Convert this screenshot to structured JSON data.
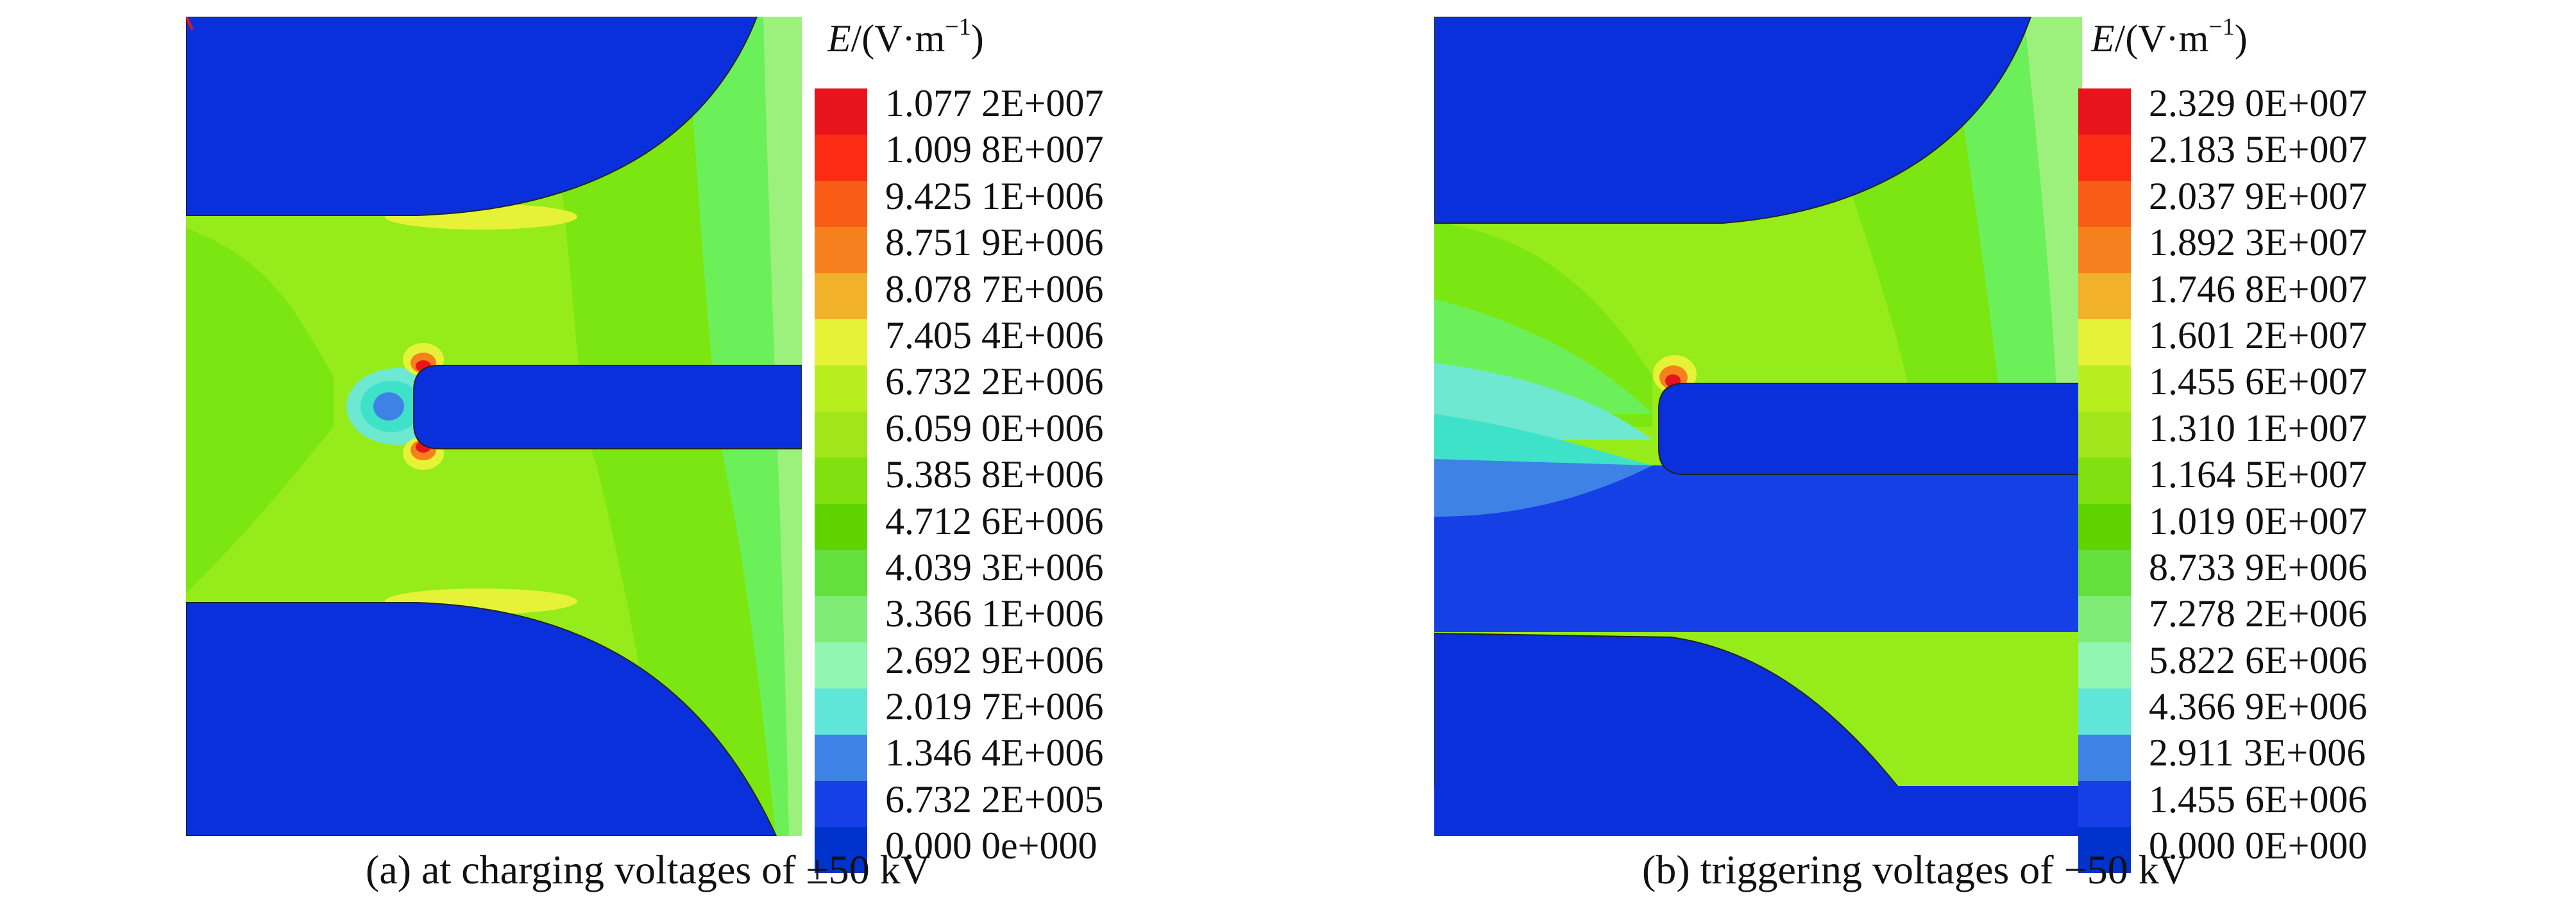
{
  "figures": [
    {
      "legend_title": "E",
      "legend_unit_prefix": "/(V·m",
      "legend_unit_exp": "−1",
      "legend_unit_suffix": ")",
      "levels": [
        "1.077 2E+007",
        "1.009 8E+007",
        "9.425 1E+006",
        "8.751 9E+006",
        "8.078 7E+006",
        "7.405 4E+006",
        "6.732 2E+006",
        "6.059 0E+006",
        "5.385 8E+006",
        "4.712 6E+006",
        "4.039 3E+006",
        "3.366 1E+006",
        "2.692 9E+006",
        "2.019 7E+006",
        "1.346 4E+006",
        "6.732 2E+005",
        "0.000 0e+000"
      ],
      "caption": "(a) at charging voltages of ±50 kV"
    },
    {
      "legend_title": "E",
      "legend_unit_prefix": "/(V·m",
      "legend_unit_exp": "−1",
      "legend_unit_suffix": ")",
      "levels": [
        "2.329 0E+007",
        "2.183 5E+007",
        "2.037 9E+007",
        "1.892 3E+007",
        "1.746 8E+007",
        "1.601 2E+007",
        "1.455 6E+007",
        "1.310 1E+007",
        "1.164 5E+007",
        "1.019 0E+007",
        "8.733 9E+006",
        "7.278 2E+006",
        "5.822 6E+006",
        "4.366 9E+006",
        "2.911 3E+006",
        "1.455 6E+006",
        "0.000 0E+000"
      ],
      "caption": "(b) triggering voltages of −50 kV"
    }
  ],
  "legend_colors": [
    "#e8141c",
    "#fc2b14",
    "#f95c14",
    "#f7801e",
    "#f2b12b",
    "#e6f238",
    "#b9ee1e",
    "#a0e61a",
    "#80e010",
    "#60d400",
    "#64e03c",
    "#80ec78",
    "#90f5b0",
    "#60e6d8",
    "#3e82e6",
    "#1440e6",
    "#0032cc"
  ],
  "field_colors": {
    "electrode": "#0a30dc",
    "gap_main": "#96ec1a",
    "gap_mid": "#7ce612",
    "edge_light": "#6cf05a",
    "edge_lighter": "#9cf07c",
    "hotspot_yellow": "#e6f238",
    "hotspot_orange": "#f7801e",
    "hotspot_red": "#e8141c",
    "low_cyan": "#6ee8d0",
    "low_teal": "#3ee2c8",
    "low_blue": "#3e82e6",
    "deep_blue": "#1440e6"
  }
}
